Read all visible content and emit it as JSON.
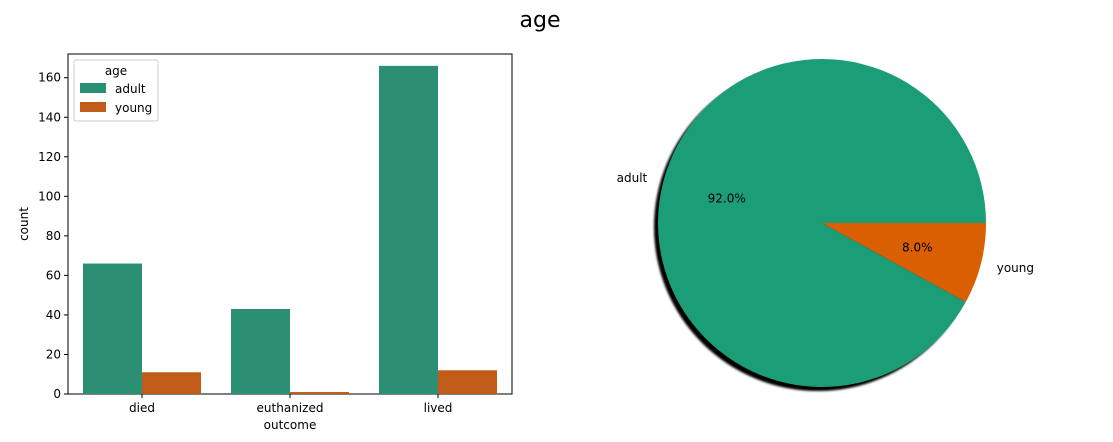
{
  "figure": {
    "title": "age"
  },
  "chart_data": [
    {
      "type": "bar",
      "categories": [
        "died",
        "euthanized",
        "lived"
      ],
      "series": [
        {
          "name": "adult",
          "values": [
            66,
            43,
            166
          ],
          "color": "#2b8f73"
        },
        {
          "name": "young",
          "values": [
            11,
            1,
            12
          ],
          "color": "#c15b1a"
        }
      ],
      "xlabel": "outcome",
      "ylabel": "count",
      "ylim": [
        0,
        172
      ],
      "yticks": [
        "0",
        "20",
        "40",
        "60",
        "80",
        "100",
        "120",
        "140",
        "160"
      ],
      "grid": false,
      "legend": {
        "title": "age",
        "position": "top-left"
      }
    },
    {
      "type": "pie",
      "slices": [
        {
          "label": "adult",
          "value": 92.0,
          "pct_label": "92.0%",
          "color": "#1b9e77"
        },
        {
          "label": "young",
          "value": 8.0,
          "pct_label": "8.0%",
          "color": "#d95f02"
        }
      ],
      "shadow": true
    }
  ]
}
